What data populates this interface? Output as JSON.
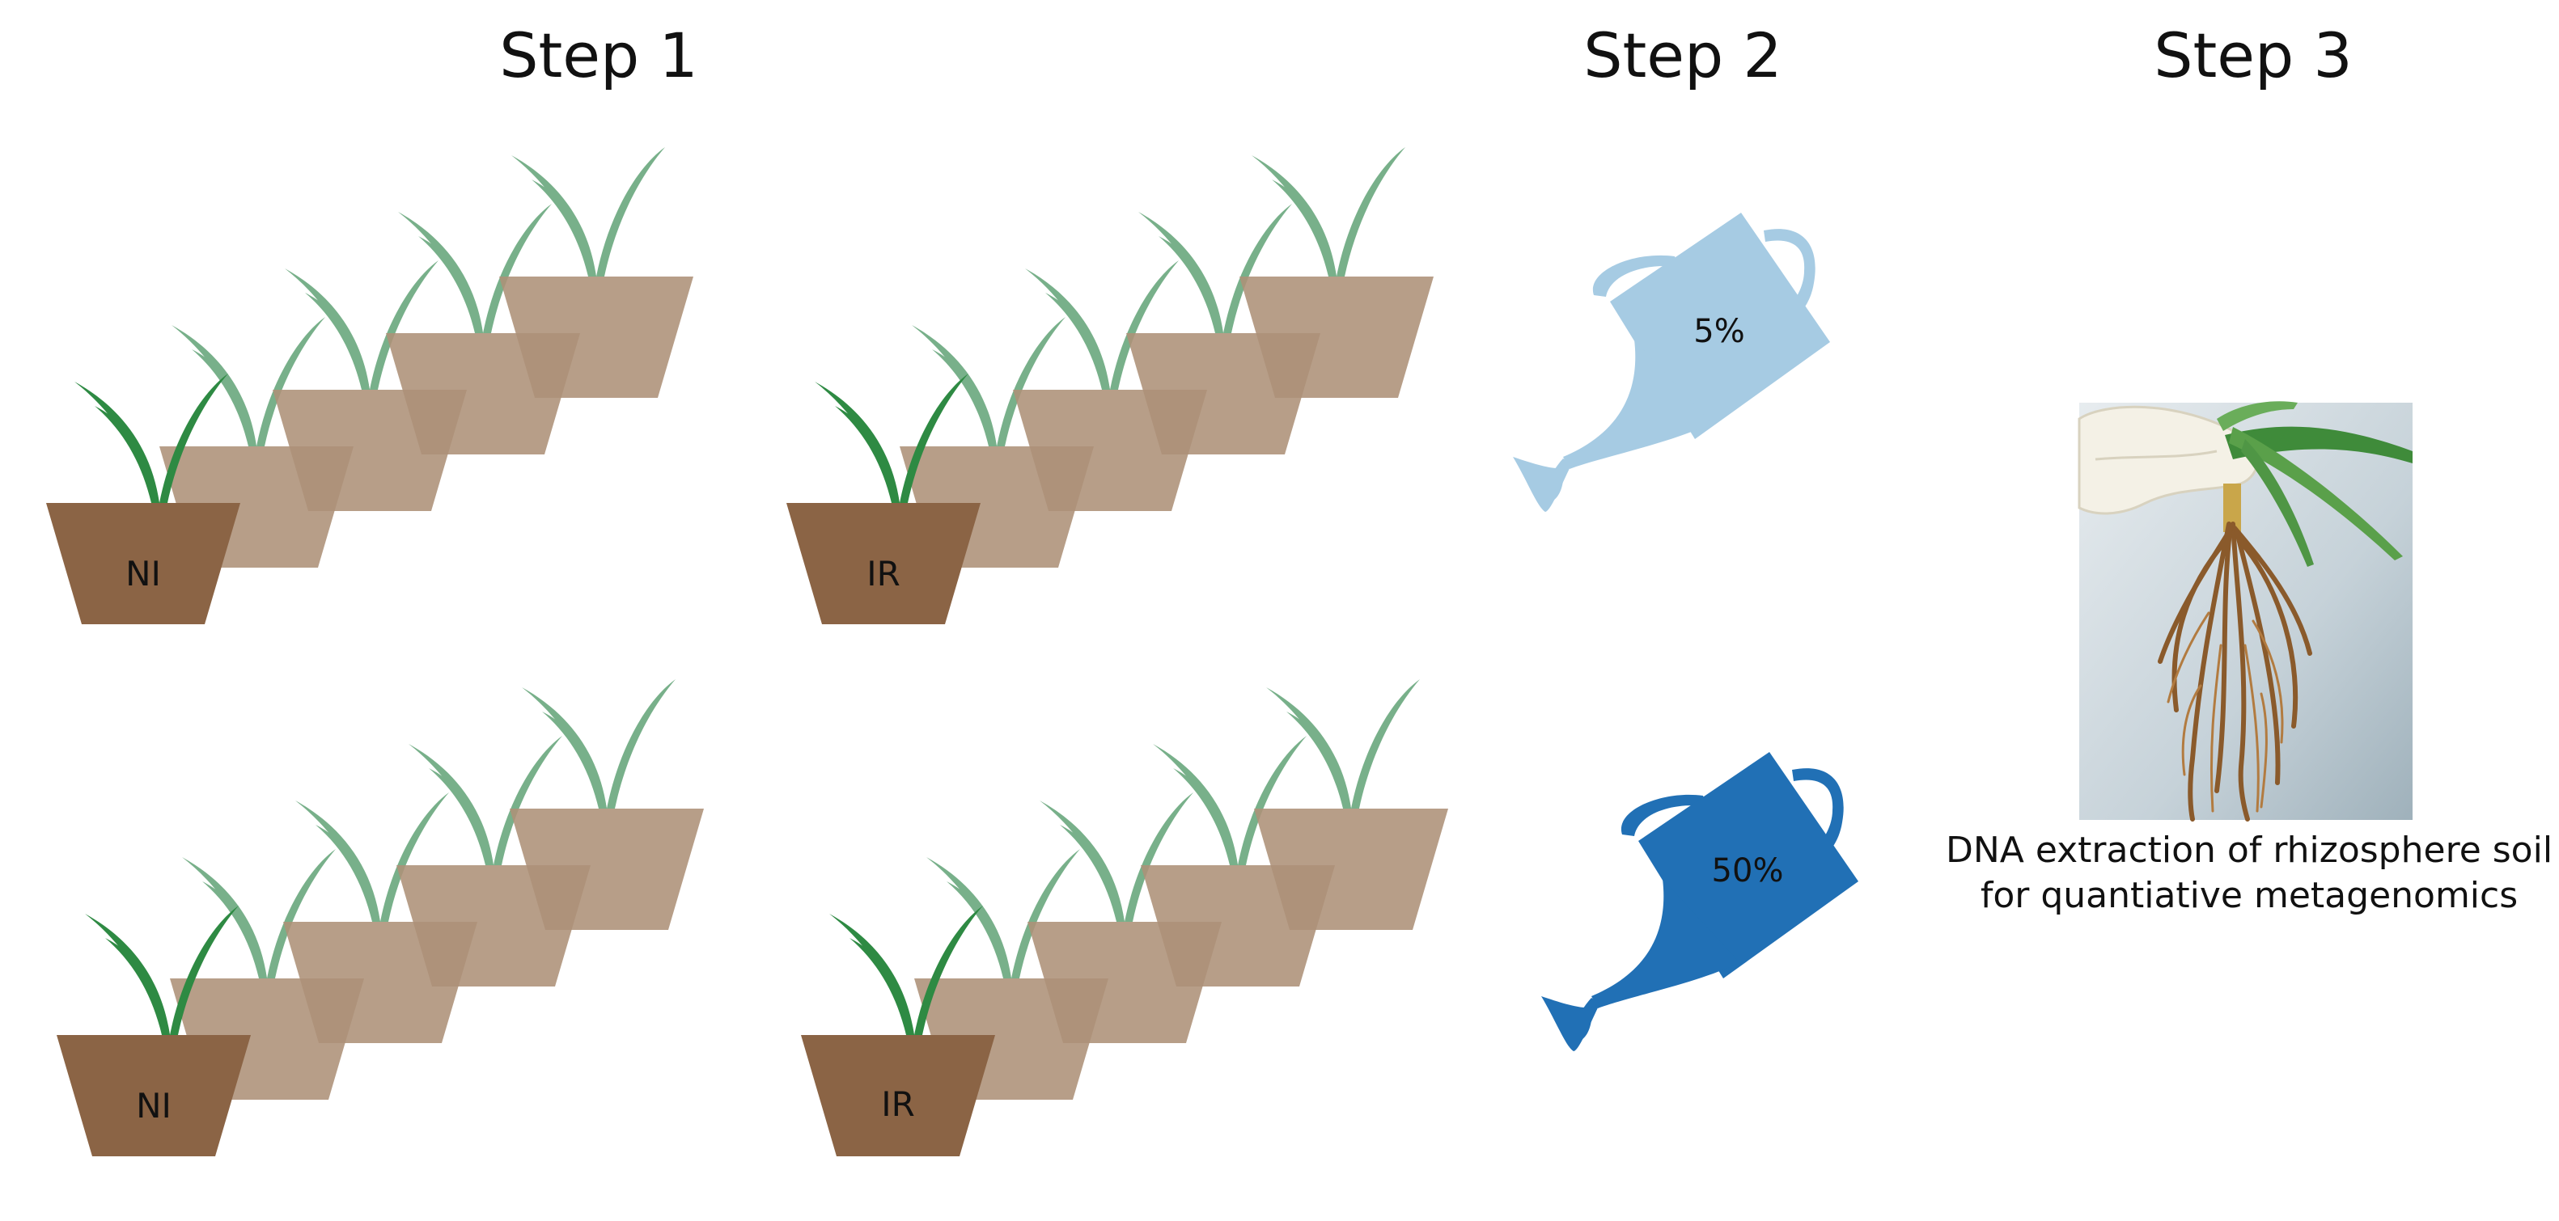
{
  "steps": {
    "step1": "Step 1",
    "step2": "Step 2",
    "step3": "Step 3"
  },
  "pot_groups": [
    {
      "label": "NI"
    },
    {
      "label": "IR"
    },
    {
      "label": "NI"
    },
    {
      "label": "IR"
    }
  ],
  "watering_cans": [
    {
      "label": "5%",
      "color": "#a6cbe3"
    },
    {
      "label": "50%",
      "color": "#2170b5"
    }
  ],
  "caption": {
    "line1": "DNA extraction of rhizosphere soil",
    "line2": "for quantiative metagenomics"
  },
  "colors": {
    "pot_front": "#8b6445",
    "pot_back": "#ad9178",
    "plant_front": "#2e8a43",
    "plant_back": "#78b08a"
  }
}
